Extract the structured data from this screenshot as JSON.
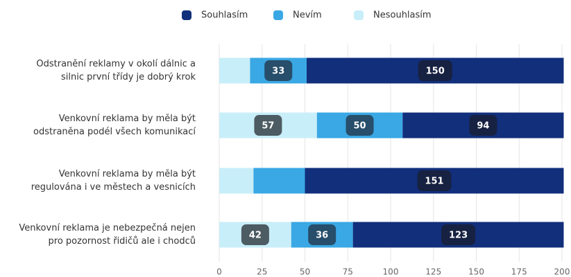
{
  "chart_data": {
    "type": "stacked-bar-horizontal",
    "categories": [
      [
        "Odstranění reklamy v okolí dálnic a",
        "silnic první třídy je dobrý krok"
      ],
      [
        "Venkovní reklama by měla být",
        "odstraněna podél všech komunikací"
      ],
      [
        "Venkovní reklama by měla být",
        "regulována i ve městech a vesnicích"
      ],
      [
        "Venkovní reklama je nebezpečná nejen",
        "pro pozornost řidičů ale i chodců"
      ]
    ],
    "series": [
      {
        "name": "Souhlasím",
        "color": "#122f7c",
        "values": [
          150,
          94,
          151,
          123
        ],
        "value_labels": [
          "150",
          "94",
          "151",
          "123"
        ]
      },
      {
        "name": "Nevím",
        "color": "#3aa8e4",
        "values": [
          33,
          50,
          30,
          36
        ],
        "value_labels": [
          "33",
          "50",
          null,
          "36"
        ]
      },
      {
        "name": "Nesouhlasím",
        "color": "#c8eef9",
        "values": [
          18,
          57,
          20,
          42
        ],
        "value_labels": [
          null,
          "57",
          null,
          "42"
        ]
      }
    ],
    "xlim": [
      0,
      200
    ],
    "xticks": [
      0,
      25,
      50,
      75,
      100,
      125,
      150,
      175,
      200
    ],
    "grid": true,
    "legend": "top"
  }
}
